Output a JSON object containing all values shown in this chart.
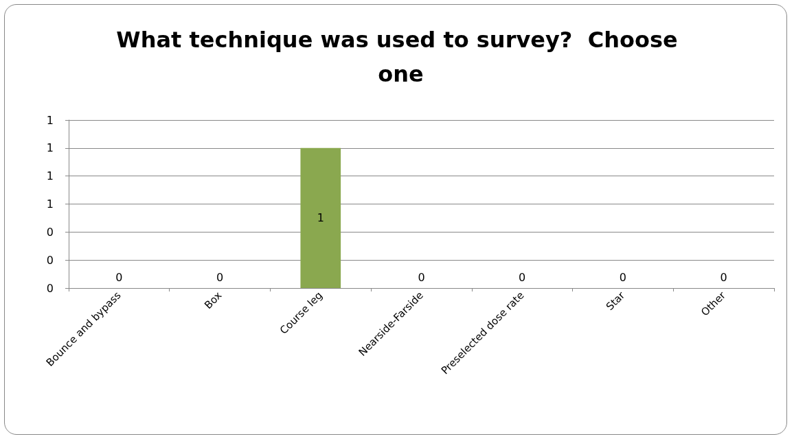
{
  "chart_data": {
    "type": "bar",
    "title": "What technique was used to survey?  Choose one",
    "categories": [
      "Bounce and bypass",
      "Box",
      "Course leg",
      "Nearside-Farside",
      "Preselected dose rate",
      "Star",
      "Other"
    ],
    "values": [
      0,
      0,
      1,
      0,
      0,
      0,
      0
    ],
    "color": "#8aa84f",
    "ylim": [
      0,
      1.2
    ],
    "yticks": [
      {
        "value": 0,
        "label": "0"
      },
      {
        "value": 0.2,
        "label": "0"
      },
      {
        "value": 0.4,
        "label": "0"
      },
      {
        "value": 0.6,
        "label": "1"
      },
      {
        "value": 0.8,
        "label": "1"
      },
      {
        "value": 1,
        "label": "1"
      },
      {
        "value": 1.2,
        "label": "1"
      }
    ],
    "grid": "y",
    "data_labels": true
  }
}
